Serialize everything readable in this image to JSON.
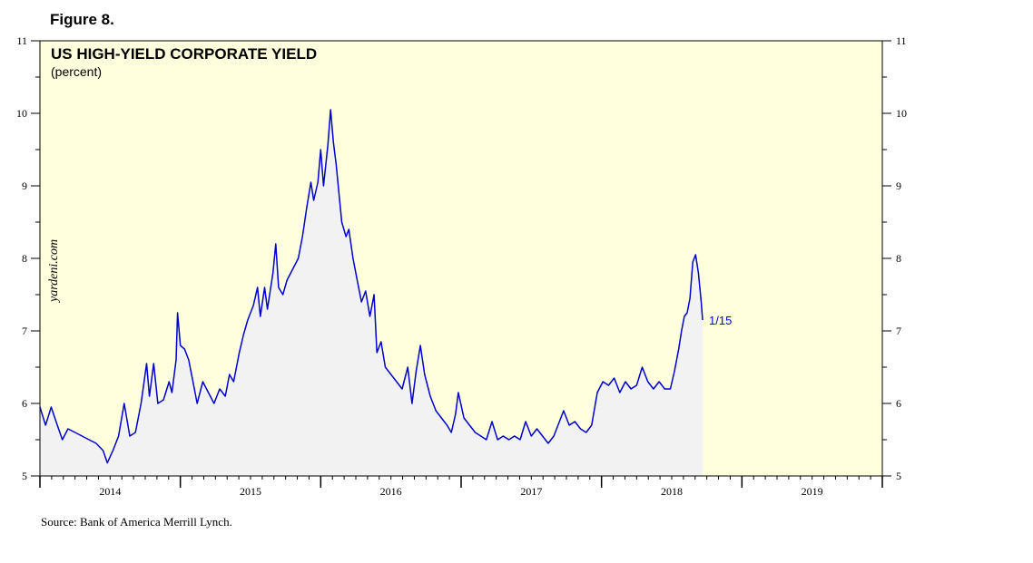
{
  "figure_label": "Figure 8.",
  "source": "Source: Bank of America Merrill Lynch.",
  "watermark": "yardeni.com",
  "colors": {
    "plot_background": "#ffffdd",
    "area_fill": "#f2f2f2",
    "line": "#0000cc",
    "end_label": "#0000cc"
  },
  "chart_data": {
    "type": "area",
    "title": "US HIGH-YIELD CORPORATE YIELD",
    "subtitle": "(percent)",
    "ylim": [
      5,
      11
    ],
    "xlim": [
      2013.5,
      2019.5
    ],
    "y_ticks": [
      5,
      6,
      7,
      8,
      9,
      10,
      11
    ],
    "x_tick_labels": [
      "2014",
      "2015",
      "2016",
      "2017",
      "2018",
      "2019"
    ],
    "grid": false,
    "axis_sides": "left-and-right",
    "end_label": "1/15",
    "series": [
      {
        "values": [
          [
            2013.5,
            5.95
          ],
          [
            2013.54,
            5.7
          ],
          [
            2013.58,
            5.95
          ],
          [
            2013.62,
            5.72
          ],
          [
            2013.66,
            5.5
          ],
          [
            2013.7,
            5.65
          ],
          [
            2013.75,
            5.6
          ],
          [
            2013.8,
            5.55
          ],
          [
            2013.85,
            5.5
          ],
          [
            2013.9,
            5.45
          ],
          [
            2013.95,
            5.35
          ],
          [
            2013.98,
            5.18
          ],
          [
            2014.02,
            5.35
          ],
          [
            2014.06,
            5.55
          ],
          [
            2014.1,
            6.0
          ],
          [
            2014.14,
            5.55
          ],
          [
            2014.18,
            5.6
          ],
          [
            2014.22,
            6.0
          ],
          [
            2014.26,
            6.55
          ],
          [
            2014.28,
            6.1
          ],
          [
            2014.31,
            6.55
          ],
          [
            2014.34,
            6.0
          ],
          [
            2014.38,
            6.05
          ],
          [
            2014.42,
            6.3
          ],
          [
            2014.44,
            6.15
          ],
          [
            2014.47,
            6.6
          ],
          [
            2014.48,
            7.25
          ],
          [
            2014.5,
            6.8
          ],
          [
            2014.53,
            6.75
          ],
          [
            2014.56,
            6.6
          ],
          [
            2014.59,
            6.3
          ],
          [
            2014.62,
            6.0
          ],
          [
            2014.66,
            6.3
          ],
          [
            2014.7,
            6.15
          ],
          [
            2014.74,
            6.0
          ],
          [
            2014.78,
            6.2
          ],
          [
            2014.82,
            6.1
          ],
          [
            2014.85,
            6.4
          ],
          [
            2014.88,
            6.3
          ],
          [
            2014.92,
            6.7
          ],
          [
            2014.95,
            6.95
          ],
          [
            2014.98,
            7.15
          ],
          [
            2015.02,
            7.35
          ],
          [
            2015.05,
            7.6
          ],
          [
            2015.07,
            7.2
          ],
          [
            2015.1,
            7.6
          ],
          [
            2015.12,
            7.3
          ],
          [
            2015.16,
            7.8
          ],
          [
            2015.18,
            8.2
          ],
          [
            2015.2,
            7.6
          ],
          [
            2015.23,
            7.5
          ],
          [
            2015.26,
            7.7
          ],
          [
            2015.3,
            7.85
          ],
          [
            2015.34,
            8.0
          ],
          [
            2015.37,
            8.3
          ],
          [
            2015.4,
            8.7
          ],
          [
            2015.43,
            9.05
          ],
          [
            2015.45,
            8.8
          ],
          [
            2015.48,
            9.05
          ],
          [
            2015.5,
            9.5
          ],
          [
            2015.52,
            9.0
          ],
          [
            2015.55,
            9.55
          ],
          [
            2015.57,
            10.05
          ],
          [
            2015.59,
            9.6
          ],
          [
            2015.61,
            9.3
          ],
          [
            2015.63,
            8.9
          ],
          [
            2015.65,
            8.5
          ],
          [
            2015.68,
            8.3
          ],
          [
            2015.7,
            8.4
          ],
          [
            2015.73,
            8.0
          ],
          [
            2015.76,
            7.7
          ],
          [
            2015.79,
            7.4
          ],
          [
            2015.82,
            7.55
          ],
          [
            2015.85,
            7.2
          ],
          [
            2015.88,
            7.5
          ],
          [
            2015.9,
            6.7
          ],
          [
            2015.93,
            6.85
          ],
          [
            2015.96,
            6.5
          ],
          [
            2016.0,
            6.4
          ],
          [
            2016.04,
            6.3
          ],
          [
            2016.08,
            6.2
          ],
          [
            2016.12,
            6.5
          ],
          [
            2016.15,
            6.0
          ],
          [
            2016.18,
            6.45
          ],
          [
            2016.21,
            6.8
          ],
          [
            2016.24,
            6.4
          ],
          [
            2016.28,
            6.1
          ],
          [
            2016.32,
            5.9
          ],
          [
            2016.36,
            5.8
          ],
          [
            2016.4,
            5.7
          ],
          [
            2016.43,
            5.6
          ],
          [
            2016.46,
            5.85
          ],
          [
            2016.48,
            6.15
          ],
          [
            2016.52,
            5.8
          ],
          [
            2016.56,
            5.7
          ],
          [
            2016.6,
            5.6
          ],
          [
            2016.64,
            5.55
          ],
          [
            2016.68,
            5.5
          ],
          [
            2016.72,
            5.75
          ],
          [
            2016.76,
            5.5
          ],
          [
            2016.8,
            5.55
          ],
          [
            2016.84,
            5.5
          ],
          [
            2016.88,
            5.55
          ],
          [
            2016.92,
            5.5
          ],
          [
            2016.96,
            5.75
          ],
          [
            2017.0,
            5.55
          ],
          [
            2017.04,
            5.65
          ],
          [
            2017.08,
            5.55
          ],
          [
            2017.12,
            5.45
          ],
          [
            2017.16,
            5.55
          ],
          [
            2017.2,
            5.75
          ],
          [
            2017.23,
            5.9
          ],
          [
            2017.27,
            5.7
          ],
          [
            2017.31,
            5.75
          ],
          [
            2017.35,
            5.65
          ],
          [
            2017.39,
            5.6
          ],
          [
            2017.43,
            5.7
          ],
          [
            2017.47,
            6.15
          ],
          [
            2017.51,
            6.3
          ],
          [
            2017.55,
            6.25
          ],
          [
            2017.59,
            6.35
          ],
          [
            2017.63,
            6.15
          ],
          [
            2017.67,
            6.3
          ],
          [
            2017.71,
            6.2
          ],
          [
            2017.75,
            6.25
          ],
          [
            2017.79,
            6.5
          ],
          [
            2017.83,
            6.3
          ],
          [
            2017.87,
            6.2
          ],
          [
            2017.91,
            6.3
          ],
          [
            2017.95,
            6.2
          ],
          [
            2017.99,
            6.2
          ],
          [
            2018.02,
            6.45
          ],
          [
            2018.05,
            6.75
          ],
          [
            2018.07,
            7.0
          ],
          [
            2018.09,
            7.2
          ],
          [
            2018.11,
            7.25
          ],
          [
            2018.13,
            7.45
          ],
          [
            2018.15,
            7.95
          ],
          [
            2018.17,
            8.05
          ],
          [
            2018.19,
            7.8
          ],
          [
            2018.21,
            7.4
          ],
          [
            2018.22,
            7.15
          ]
        ]
      }
    ]
  }
}
